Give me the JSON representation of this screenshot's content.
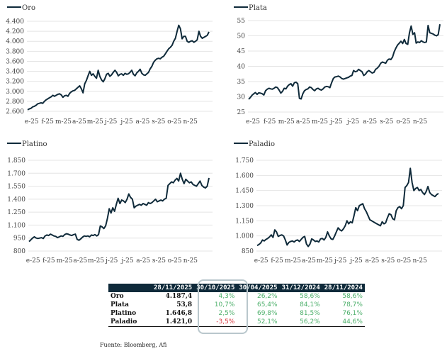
{
  "chart_data": [
    {
      "type": "line",
      "title": "Oro",
      "legend": "Oro",
      "legend_position": "top-left",
      "x_ticks": [
        "e-25",
        "f-25",
        "m-25",
        "a-25",
        "m-25",
        "j-25",
        "j-25",
        "a-25",
        "s-25",
        "o-25",
        "n-25"
      ],
      "y_ticks": [
        "2.600",
        "2.800",
        "3.000",
        "3.200",
        "3.400",
        "3.600",
        "3.800",
        "4.000",
        "4.200",
        "4.400"
      ],
      "ylim": [
        2600,
        4400
      ],
      "grid": true,
      "series": [
        {
          "name": "Oro",
          "values": [
            2630,
            2650,
            2660,
            2690,
            2700,
            2720,
            2750,
            2760,
            2770,
            2760,
            2800,
            2830,
            2850,
            2870,
            2890,
            2920,
            2900,
            2920,
            2940,
            2950,
            2930,
            2880,
            2910,
            2920,
            2900,
            2960,
            2990,
            3010,
            3020,
            3050,
            3080,
            3110,
            3050,
            2970,
            3150,
            3220,
            3310,
            3400,
            3320,
            3350,
            3300,
            3260,
            3420,
            3300,
            3230,
            3190,
            3250,
            3340,
            3360,
            3300,
            3330,
            3380,
            3420,
            3380,
            3310,
            3340,
            3350,
            3320,
            3360,
            3340,
            3350,
            3380,
            3420,
            3340,
            3310,
            3370,
            3400,
            3440,
            3360,
            3330,
            3320,
            3350,
            3380,
            3450,
            3500,
            3580,
            3620,
            3650,
            3660,
            3650,
            3680,
            3700,
            3750,
            3800,
            3850,
            3880,
            3920,
            4000,
            4060,
            4200,
            4320,
            4250,
            4050,
            4100,
            4100,
            4000,
            3980,
            4000,
            4010,
            3980,
            4000,
            4030,
            4200,
            4100,
            4060,
            4080,
            4100,
            4120,
            4187
          ]
        }
      ]
    },
    {
      "type": "line",
      "title": "Plata",
      "legend": "Plata",
      "legend_position": "top-left",
      "x_ticks": [
        "e-25",
        "f-25",
        "m-25",
        "a-25",
        "m-25",
        "j-25",
        "j-25",
        "a-25",
        "s-25",
        "o-25",
        "n-25"
      ],
      "y_ticks": [
        "25",
        "30",
        "35",
        "40",
        "45",
        "50",
        "55"
      ],
      "ylim": [
        25,
        55
      ],
      "grid": true,
      "series": [
        {
          "name": "Plata",
          "values": [
            29.2,
            29.8,
            30.5,
            31,
            31.4,
            30.8,
            31.3,
            31.2,
            31,
            30.6,
            32,
            32.5,
            32.8,
            32.6,
            32.5,
            32.8,
            33.2,
            33,
            32.2,
            31.2,
            31.8,
            32.8,
            32.6,
            33.5,
            34,
            34.3,
            33.5,
            34.6,
            34.8,
            34.3,
            29.5,
            29.3,
            31,
            32,
            32.4,
            32.6,
            33.2,
            33,
            32.4,
            32,
            32.6,
            32.8,
            32.4,
            32.2,
            32.6,
            33.2,
            33.4,
            33.3,
            33,
            34.6,
            36,
            36.5,
            36.6,
            36.8,
            36.5,
            36,
            35.8,
            36,
            36.2,
            36.4,
            36.8,
            37,
            38.6,
            38.2,
            38.4,
            39,
            38.6,
            38.2,
            37,
            37.4,
            38.2,
            38.6,
            38.2,
            37.8,
            38,
            39,
            39.4,
            40,
            41,
            41.4,
            41.2,
            41,
            42,
            42.4,
            42.2,
            43,
            44.8,
            46,
            47,
            47.6,
            48.2,
            47.5,
            48.8,
            47.5,
            47.2,
            51,
            53.2,
            50.5,
            51,
            47.6,
            48,
            47.8,
            48.4,
            48,
            47.8,
            48,
            53.4,
            51,
            50.8,
            50.6,
            50.2,
            50,
            50.4,
            53.8
          ]
        }
      ]
    },
    {
      "type": "line",
      "title": "Platino",
      "legend": "Platino",
      "legend_position": "top-left",
      "x_ticks": [
        "e-25",
        "f-25",
        "m-25",
        "a-25",
        "m-25",
        "j-25",
        "j-25",
        "a-25",
        "s-25",
        "o-25",
        "n-25"
      ],
      "y_ticks": [
        "800",
        "950",
        "1.100",
        "1.250",
        "1.400",
        "1.550",
        "1.700",
        "1.850"
      ],
      "ylim": [
        800,
        1850
      ],
      "grid": true,
      "series": [
        {
          "name": "Platino",
          "values": [
            910,
            930,
            950,
            965,
            950,
            945,
            950,
            955,
            945,
            975,
            985,
            980,
            995,
            985,
            975,
            970,
            955,
            965,
            975,
            970,
            990,
            1000,
            995,
            985,
            980,
            990,
            995,
            935,
            925,
            940,
            960,
            975,
            970,
            975,
            965,
            985,
            980,
            990,
            975,
            990,
            1090,
            1080,
            1060,
            1090,
            1180,
            1290,
            1240,
            1300,
            1260,
            1340,
            1410,
            1350,
            1390,
            1380,
            1360,
            1400,
            1460,
            1420,
            1400,
            1300,
            1320,
            1330,
            1340,
            1330,
            1350,
            1340,
            1330,
            1360,
            1350,
            1360,
            1380,
            1400,
            1370,
            1380,
            1390,
            1380,
            1400,
            1410,
            1560,
            1580,
            1600,
            1590,
            1620,
            1640,
            1610,
            1700,
            1630,
            1580,
            1630,
            1610,
            1590,
            1600,
            1570,
            1560,
            1550,
            1580,
            1610,
            1560,
            1540,
            1530,
            1550,
            1646
          ]
        }
      ]
    },
    {
      "type": "line",
      "title": "Paladio",
      "legend": "Paladio",
      "legend_position": "top-left",
      "x_ticks": [
        "e-25",
        "f-25",
        "m-25",
        "a-25",
        "m-25",
        "j-25",
        "j-25",
        "a-25",
        "s-25",
        "o-25",
        "n-25"
      ],
      "y_ticks": [
        "850",
        "1.000",
        "1.150",
        "1.300",
        "1.450",
        "1.600",
        "1.750"
      ],
      "ylim": [
        850,
        1750
      ],
      "grid": true,
      "series": [
        {
          "name": "Paladio",
          "values": [
            905,
            915,
            930,
            960,
            950,
            965,
            975,
            990,
            1010,
            985,
            1060,
            1040,
            995,
            1005,
            1010,
            1000,
            960,
            910,
            935,
            945,
            950,
            940,
            955,
            960,
            945,
            965,
            985,
            995,
            920,
            895,
            920,
            970,
            960,
            945,
            950,
            940,
            970,
            975,
            960,
            985,
            1040,
            1000,
            970,
            965,
            1000,
            1040,
            1080,
            1060,
            1050,
            1070,
            1100,
            1150,
            1120,
            1140,
            1130,
            1200,
            1280,
            1250,
            1300,
            1310,
            1320,
            1270,
            1240,
            1200,
            1160,
            1150,
            1140,
            1130,
            1120,
            1110,
            1100,
            1140,
            1120,
            1130,
            1180,
            1220,
            1210,
            1170,
            1160,
            1250,
            1280,
            1290,
            1270,
            1300,
            1480,
            1500,
            1530,
            1670,
            1530,
            1450,
            1470,
            1480,
            1450,
            1460,
            1430,
            1410,
            1440,
            1490,
            1430,
            1410,
            1400,
            1390,
            1410,
            1421
          ]
        }
      ]
    }
  ],
  "table": {
    "headers": [
      "",
      "28/11/2025",
      "30/10/2025",
      "30/04/2025",
      "31/12/2024",
      "28/11/2024"
    ],
    "rows": [
      {
        "name": "Oro",
        "value": "4.187,4",
        "c1": "4,3%",
        "c2": "26,2%",
        "c3": "58,6%",
        "c4": "58,6%"
      },
      {
        "name": "Plata",
        "value": "53,8",
        "c1": "10,7%",
        "c2": "65,4%",
        "c3": "84,1%",
        "c4": "78,7%"
      },
      {
        "name": "Platino",
        "value": "1.646,8",
        "c1": "2,5%",
        "c2": "69,8%",
        "c3": "81,5%",
        "c4": "76,1%"
      },
      {
        "name": "Paladio",
        "value": "1.421,0",
        "c1": "-3,5%",
        "c2": "52,1%",
        "c3": "56,2%",
        "c4": "44,6%"
      }
    ]
  },
  "source": "Fuente: Bloomberg, Afi",
  "colors": {
    "series": "#0f2a3a",
    "positive": "#4caf6a",
    "negative": "#d9383f",
    "header_bg": "#0f2a3a"
  }
}
